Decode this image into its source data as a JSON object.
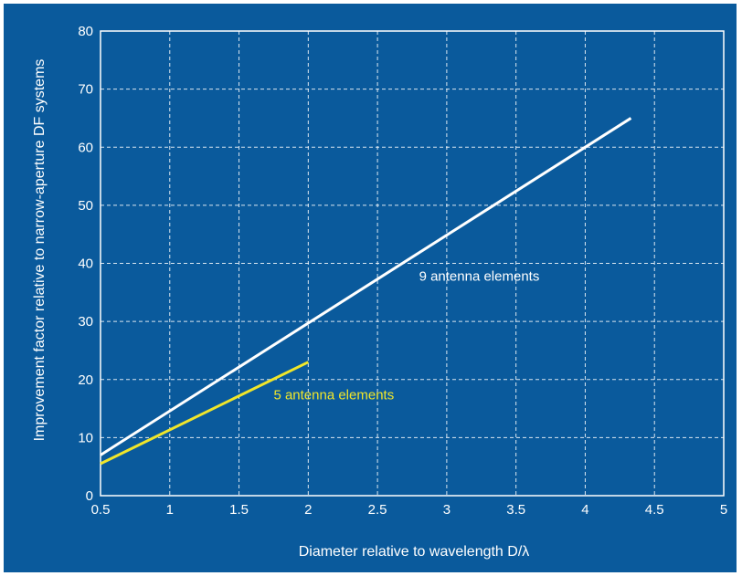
{
  "chart_data": {
    "type": "line",
    "title": "",
    "xlabel": "Diameter relative to wavelength D/λ",
    "ylabel": "Improvement factor relative to narrow-aperture DF systems",
    "xlim": [
      0.5,
      5
    ],
    "ylim": [
      0,
      80
    ],
    "x_ticks": [
      "0.5",
      "1",
      "1.5",
      "2",
      "2.5",
      "3",
      "3.5",
      "4",
      "4.5",
      "5"
    ],
    "y_ticks": [
      "0",
      "10",
      "20",
      "30",
      "40",
      "50",
      "60",
      "70",
      "80"
    ],
    "grid": true,
    "series": [
      {
        "name": "9 antenna elements",
        "color": "#ffffff",
        "points": [
          [
            0.5,
            7
          ],
          [
            4.33,
            65
          ]
        ]
      },
      {
        "name": "5 antenna elements",
        "color": "#f0e62a",
        "points": [
          [
            0.5,
            5.5
          ],
          [
            2.0,
            23
          ]
        ]
      }
    ],
    "background_color": "#0a5a9c"
  }
}
